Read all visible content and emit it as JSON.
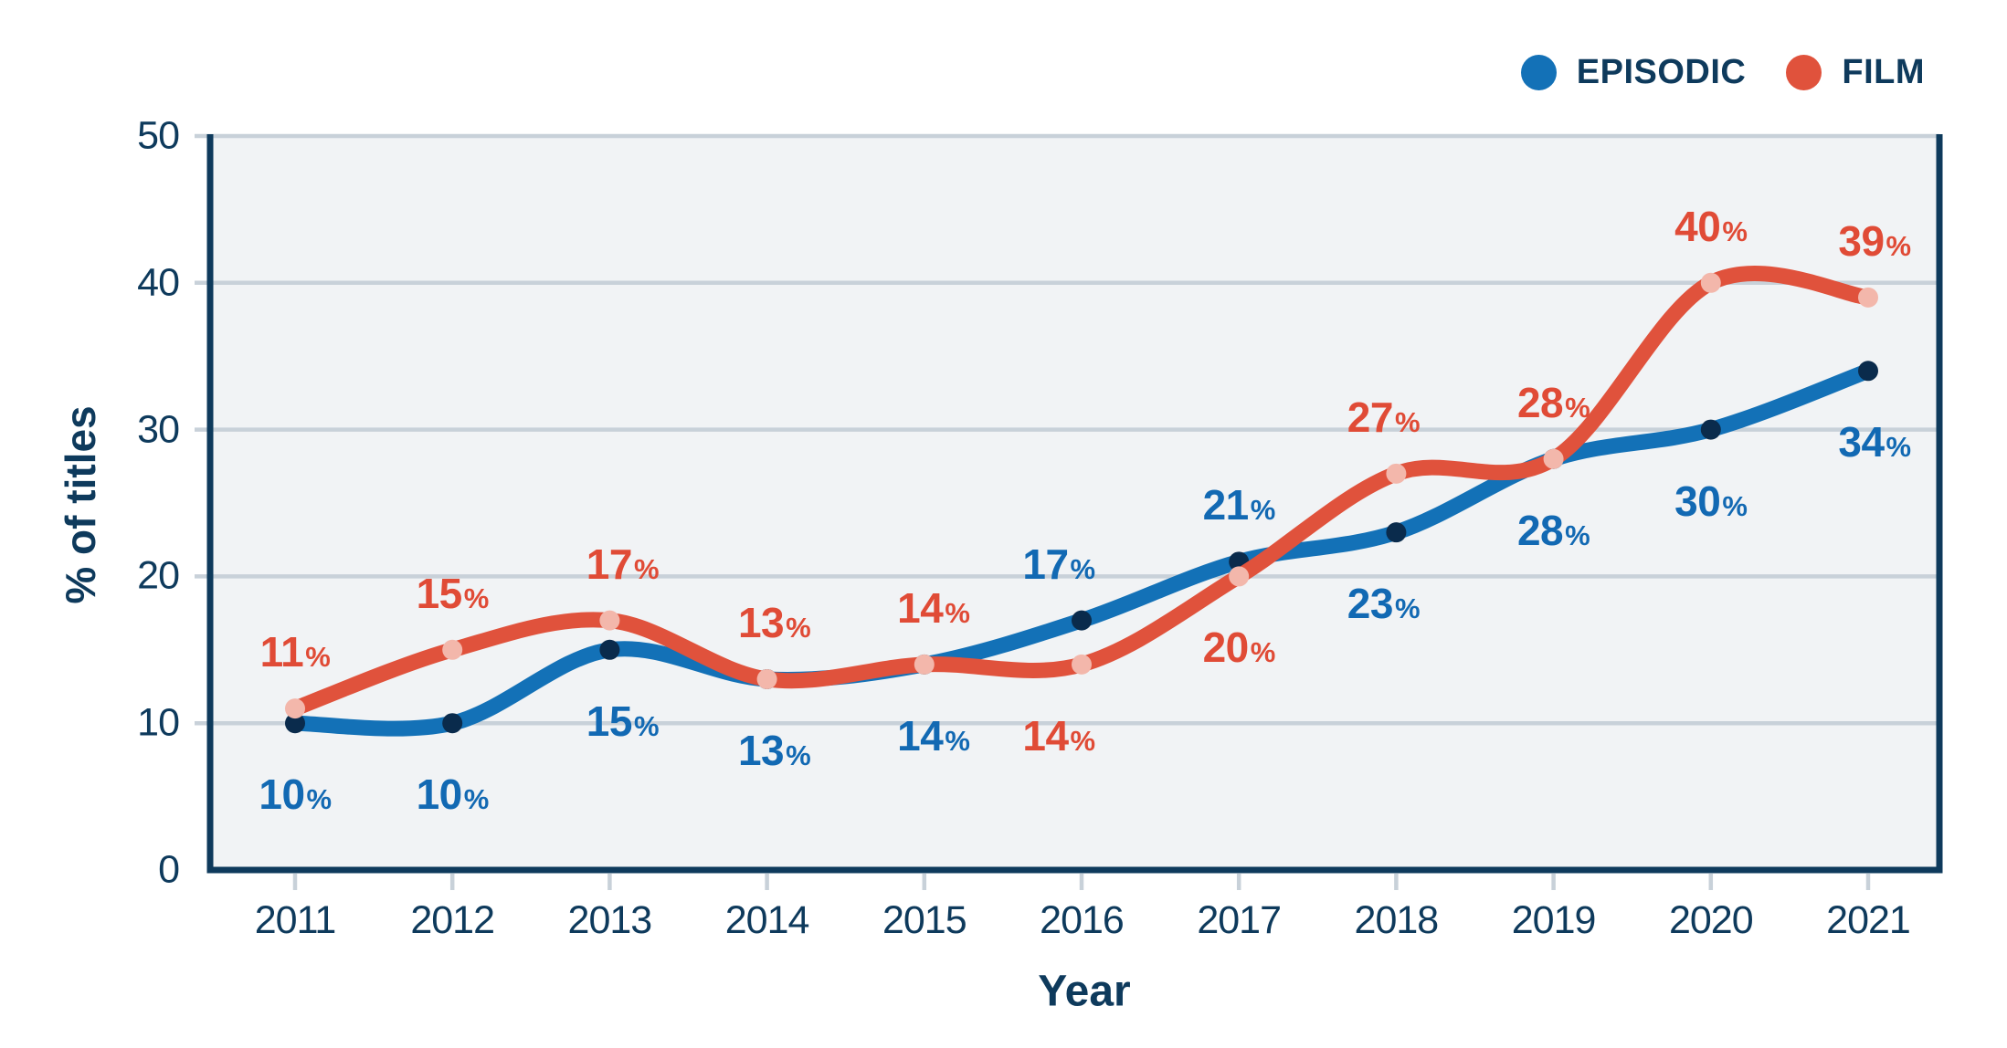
{
  "colors": {
    "navy": "#0E3A5C",
    "grid": "#C8D1D9",
    "plot_bg": "#F1F3F5",
    "background": "#FFFFFF"
  },
  "chart_data": {
    "type": "line",
    "title": "",
    "xlabel": "Year",
    "ylabel": "% of titles",
    "unit": "%",
    "x": [
      "2011",
      "2012",
      "2013",
      "2014",
      "2015",
      "2016",
      "2017",
      "2018",
      "2019",
      "2020",
      "2021"
    ],
    "yticks": [
      0,
      10,
      20,
      30,
      40,
      50
    ],
    "ylim": [
      0,
      50
    ],
    "grid": true,
    "legend_position": "top-right",
    "series": [
      {
        "name": "EPISODIC",
        "line_color": "#1371B7",
        "marker_color": "#0A2B4C",
        "label_color": "#1269B3",
        "values": [
          10,
          10,
          15,
          13,
          14,
          17,
          21,
          23,
          28,
          30,
          34
        ],
        "labels": [
          "10",
          "10",
          "15",
          "13",
          "14",
          "17",
          "21",
          "23",
          "28",
          "30",
          "34"
        ],
        "label_sides": [
          "below",
          "below",
          "below",
          "below",
          "below",
          "above",
          "above",
          "below",
          "below",
          "below",
          "below"
        ]
      },
      {
        "name": "FILM",
        "line_color": "#E0523C",
        "marker_color": "#F3B7AB",
        "label_color": "#E04B36",
        "values": [
          11,
          15,
          17,
          13,
          14,
          14,
          20,
          27,
          28,
          40,
          39
        ],
        "labels": [
          "11",
          "15",
          "17",
          "13",
          "14",
          "14",
          "20",
          "27",
          "28",
          "40",
          "39"
        ],
        "label_sides": [
          "above",
          "above",
          "above",
          "above",
          "above",
          "below",
          "below",
          "above",
          "above",
          "above",
          "above"
        ]
      }
    ]
  }
}
